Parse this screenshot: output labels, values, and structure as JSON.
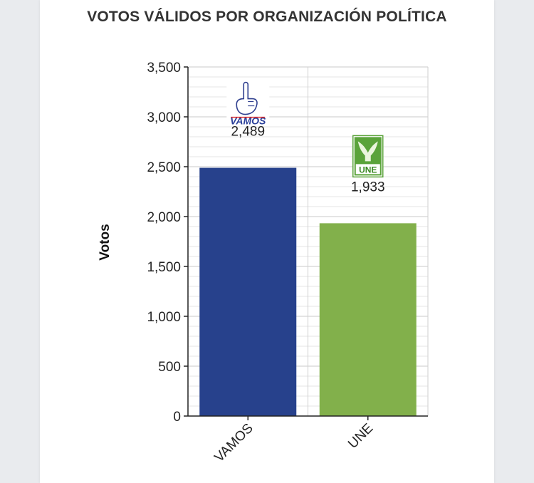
{
  "chart_data": {
    "type": "bar",
    "title": "VOTOS VÁLIDOS POR ORGANIZACIÓN POLÍTICA",
    "xlabel": "",
    "ylabel": "Votos",
    "categories": [
      "VAMOS",
      "UNE"
    ],
    "values": [
      2489,
      1933
    ],
    "value_labels": [
      "2,489",
      "1,933"
    ],
    "colors": [
      "#27418c",
      "#82b04b"
    ],
    "logos": [
      "VAMOS",
      "UNE"
    ],
    "ylim": [
      0,
      3500
    ],
    "yticks": [
      0,
      500,
      1000,
      1500,
      2000,
      2500,
      3000,
      3500
    ],
    "ytick_labels": [
      "0",
      "500",
      "1,000",
      "1,500",
      "2,000",
      "2,500",
      "3,000",
      "3,500"
    ],
    "grid": true,
    "legend": "none"
  }
}
